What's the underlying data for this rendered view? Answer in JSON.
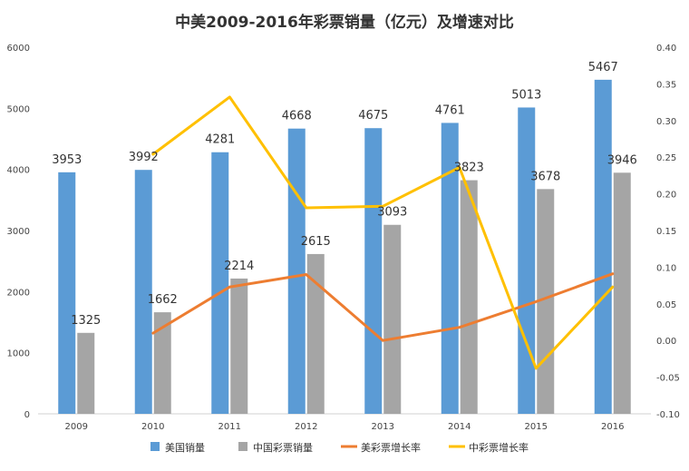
{
  "chart_data": {
    "type": "bar",
    "title": "中美2009-2016年彩票销量（亿元）及增速对比",
    "categories": [
      "2009",
      "2010",
      "2011",
      "2012",
      "2013",
      "2014",
      "2015",
      "2016"
    ],
    "y_left": {
      "lim": [
        0,
        6000
      ],
      "ticks": [
        0,
        1000,
        2000,
        3000,
        4000,
        5000,
        6000
      ]
    },
    "y_right": {
      "lim": [
        -0.1,
        0.4
      ],
      "ticks": [
        "-0.10",
        "-0.05",
        "0.00",
        "0.05",
        "0.10",
        "0.15",
        "0.20",
        "0.25",
        "0.30",
        "0.35",
        "0.40"
      ]
    },
    "grid": false,
    "legend_position": "bottom",
    "bar_series": [
      {
        "name": "美国销量",
        "color": "#5B9BD5",
        "values": [
          3953,
          3992,
          4281,
          4668,
          4675,
          4761,
          5013,
          5467
        ]
      },
      {
        "name": "中国彩票销量",
        "color": "#A5A5A5",
        "values": [
          1325,
          1662,
          2214,
          2615,
          3093,
          3823,
          3678,
          3946
        ]
      }
    ],
    "line_series": [
      {
        "name": "美彩票增长率",
        "color": "#ED7D31",
        "axis": "right",
        "values": [
          null,
          0.01,
          0.073,
          0.09,
          0.0,
          0.018,
          0.053,
          0.091
        ]
      },
      {
        "name": "中彩票增长率",
        "color": "#FFC000",
        "axis": "right",
        "values": [
          null,
          0.254,
          0.332,
          0.181,
          0.183,
          0.236,
          -0.038,
          0.073
        ]
      }
    ]
  }
}
